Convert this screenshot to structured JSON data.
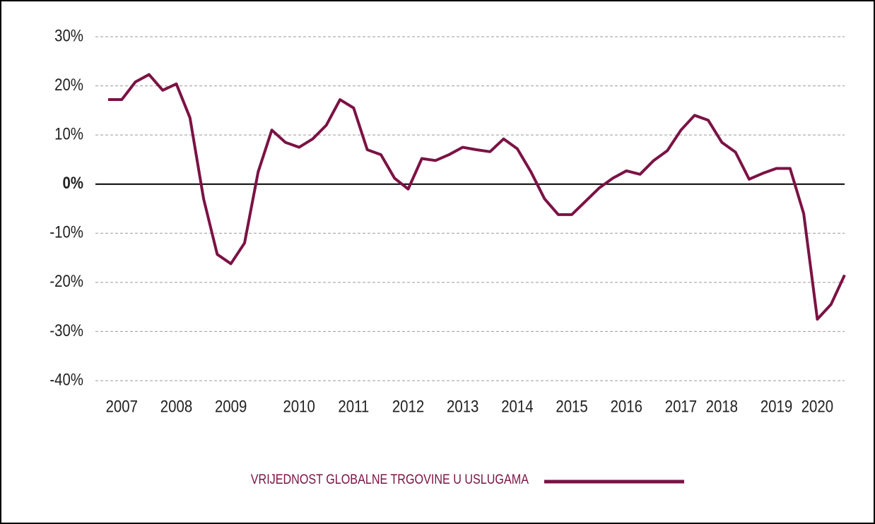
{
  "chart_data": {
    "type": "line",
    "categories": [
      null,
      "2007",
      null,
      null,
      null,
      "2008",
      null,
      null,
      null,
      "2009",
      null,
      null,
      null,
      null,
      "2010",
      null,
      null,
      null,
      "2011",
      null,
      null,
      null,
      "2012",
      null,
      null,
      null,
      "2013",
      null,
      null,
      null,
      "2014",
      null,
      null,
      null,
      "2015",
      null,
      null,
      null,
      "2016",
      null,
      null,
      null,
      "2017",
      null,
      null,
      "2018",
      null,
      null,
      null,
      "2019",
      null,
      null,
      "2020",
      null,
      null
    ],
    "series": [
      {
        "name": "VRIJEDNOST GLOBALNE TRGOVINE U USLUGAMA",
        "color": "#7b1244",
        "values": [
          17.2,
          17.2,
          20.8,
          22.3,
          19.1,
          20.4,
          13.5,
          -3,
          -14.3,
          -16.2,
          -12,
          2.5,
          11,
          8.5,
          7.5,
          9.2,
          12,
          17.2,
          15.5,
          7,
          6,
          1.2,
          -1,
          5.2,
          4.8,
          6,
          7.5,
          7,
          6.6,
          9.2,
          7.2,
          2.5,
          -3,
          -6.2,
          -6.2,
          -3.5,
          -0.8,
          1.2,
          2.7,
          2,
          4.8,
          6.8,
          11,
          14,
          13,
          8.5,
          6.5,
          1,
          2.2,
          3.2,
          3.2,
          -6,
          -27.5,
          -24.5,
          -18.5
        ]
      }
    ],
    "ylim": [
      -40,
      30
    ],
    "yticks": [
      {
        "value": -40,
        "label": "-40%"
      },
      {
        "value": -30,
        "label": "-30%"
      },
      {
        "value": -20,
        "label": "-20%"
      },
      {
        "value": -10,
        "label": "-10%"
      },
      {
        "value": 0,
        "label": "0%"
      },
      {
        "value": 10,
        "label": "10%"
      },
      {
        "value": 20,
        "label": "20%"
      },
      {
        "value": 30,
        "label": "30%"
      }
    ],
    "grid": true,
    "legend": "bottom"
  }
}
